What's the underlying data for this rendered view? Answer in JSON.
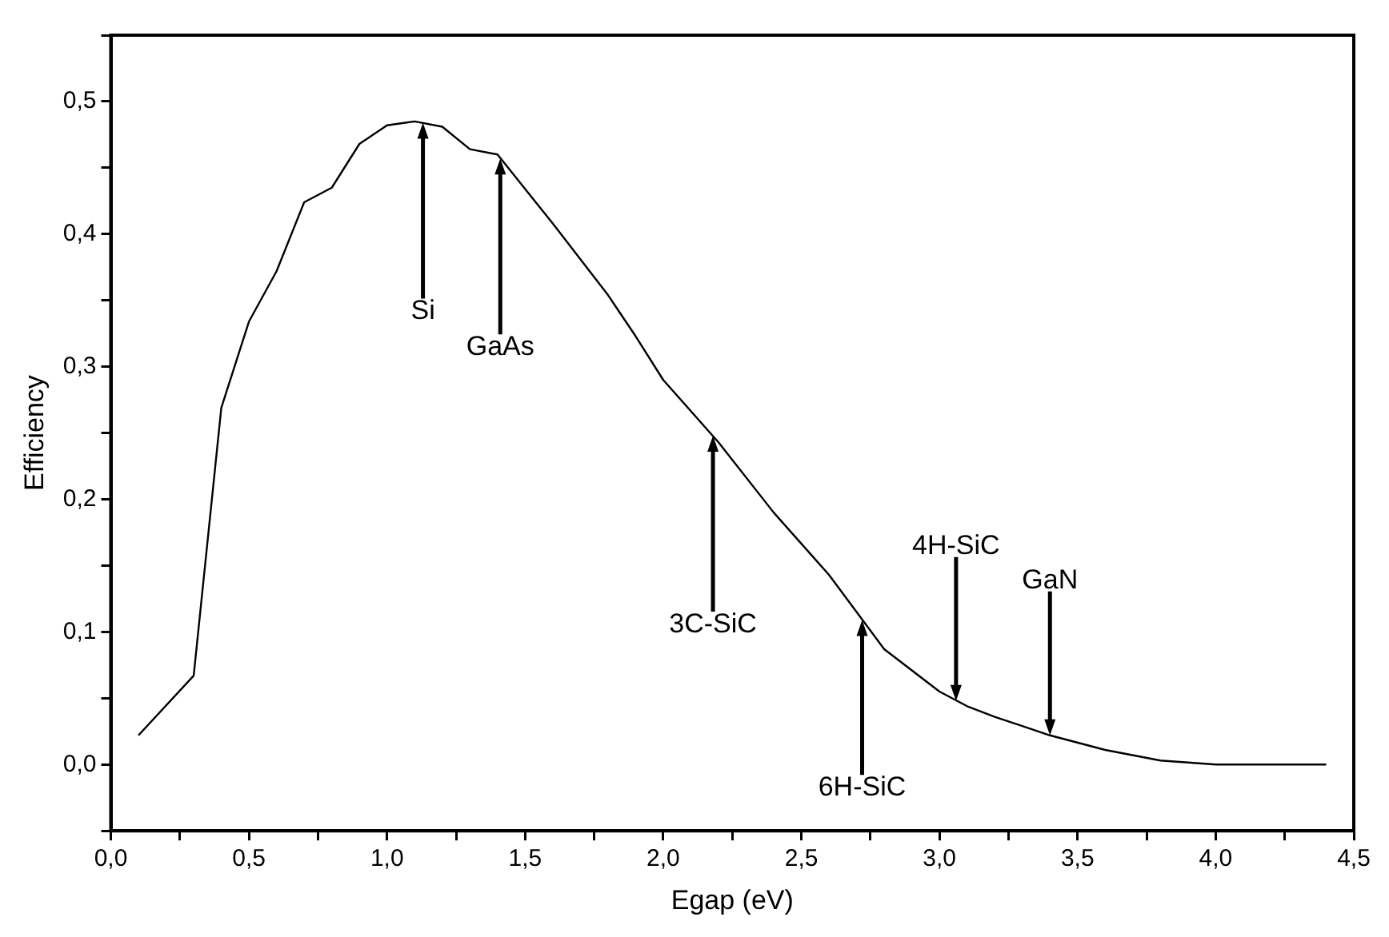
{
  "chart_data": {
    "type": "line",
    "xlabel": "Egap (eV)",
    "ylabel": "Efficiency",
    "x": [
      0.1,
      0.3,
      0.4,
      0.5,
      0.6,
      0.7,
      0.8,
      0.9,
      1.0,
      1.1,
      1.2,
      1.3,
      1.4,
      1.6,
      1.8,
      1.9,
      2.0,
      2.2,
      2.4,
      2.6,
      2.8,
      3.0,
      3.1,
      3.2,
      3.4,
      3.6,
      3.8,
      4.0,
      4.2,
      4.4
    ],
    "series": [
      {
        "color": "#000000",
        "values": [
          0.022,
          0.067,
          0.269,
          0.334,
          0.372,
          0.424,
          0.435,
          0.468,
          0.482,
          0.485,
          0.481,
          0.464,
          0.46,
          0.408,
          0.354,
          0.323,
          0.29,
          0.243,
          0.19,
          0.143,
          0.087,
          0.055,
          0.044,
          0.036,
          0.022,
          0.011,
          0.003,
          0.0,
          0.0,
          0.0
        ]
      }
    ],
    "xlim": [
      0,
      4.5
    ],
    "xticks": [
      {
        "value": 0,
        "label": "0,0"
      },
      {
        "value": 0.25,
        "label": null
      },
      {
        "value": 0.5,
        "label": "0,5"
      },
      {
        "value": 0.75,
        "label": null
      },
      {
        "value": 1,
        "label": "1,0"
      },
      {
        "value": 1.25,
        "label": null
      },
      {
        "value": 1.5,
        "label": "1,5"
      },
      {
        "value": 1.75,
        "label": null
      },
      {
        "value": 2,
        "label": "2,0"
      },
      {
        "value": 2.25,
        "label": null
      },
      {
        "value": 2.5,
        "label": "2,5"
      },
      {
        "value": 2.75,
        "label": null
      },
      {
        "value": 3,
        "label": "3,0"
      },
      {
        "value": 3.25,
        "label": null
      },
      {
        "value": 3.5,
        "label": "3,5"
      },
      {
        "value": 3.75,
        "label": null
      },
      {
        "value": 4,
        "label": "4,0"
      },
      {
        "value": 4.25,
        "label": null
      },
      {
        "value": 4.5,
        "label": "4,5"
      }
    ],
    "ylim": [
      -0.05,
      0.55
    ],
    "yticks": [
      {
        "value": -0.05,
        "label": null
      },
      {
        "value": 0,
        "label": "0,0"
      },
      {
        "value": 0.05,
        "label": null
      },
      {
        "value": 0.1,
        "label": "0,1"
      },
      {
        "value": 0.15,
        "label": null
      },
      {
        "value": 0.2,
        "label": "0,2"
      },
      {
        "value": 0.25,
        "label": null
      },
      {
        "value": 0.3,
        "label": "0,3"
      },
      {
        "value": 0.35,
        "label": null
      },
      {
        "value": 0.4,
        "label": "0,4"
      },
      {
        "value": 0.45,
        "label": null
      },
      {
        "value": 0.5,
        "label": "0,5"
      },
      {
        "value": 0.55,
        "label": null
      }
    ],
    "grid": false,
    "legend": false,
    "marker": "none",
    "line_style": "solid",
    "annotations": [
      {
        "text": "Si",
        "x": 1.13,
        "y": 0.484
      },
      {
        "text": "GaAs",
        "x": 1.41,
        "y": 0.457
      },
      {
        "text": "3C-SiC",
        "x": 2.18,
        "y": 0.248
      },
      {
        "text": "6H-SiC",
        "x": 2.72,
        "y": 0.109
      },
      {
        "text": "4H-SiC",
        "x": 3.06,
        "y": 0.048
      },
      {
        "text": "GaN",
        "x": 3.4,
        "y": 0.022
      }
    ]
  }
}
